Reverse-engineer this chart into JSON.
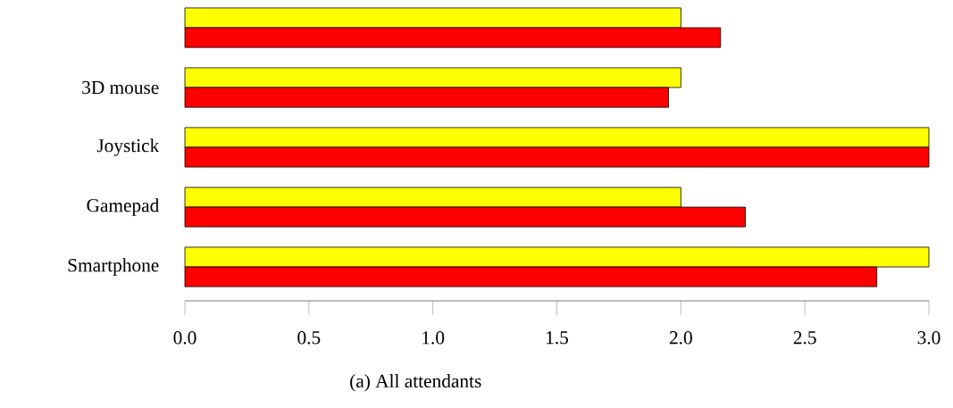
{
  "chart_data": {
    "type": "bar",
    "orientation": "horizontal",
    "categories": [
      null,
      "3D mouse",
      "Joystick",
      "Gamepad",
      "Smartphone"
    ],
    "series": [
      {
        "color": "#ffff00",
        "values": [
          2,
          2,
          3,
          2,
          3
        ]
      },
      {
        "color": "#ff0000",
        "values": [
          2.16,
          1.95,
          3,
          2.26,
          2.79
        ]
      }
    ],
    "xlim": [
      0,
      3
    ],
    "xticks": [
      {
        "value": 0,
        "label": "0.0"
      },
      {
        "value": 0.5,
        "label": "0.5"
      },
      {
        "value": 1,
        "label": "1.0"
      },
      {
        "value": 1.5,
        "label": "1.5"
      },
      {
        "value": 2,
        "label": "2.0"
      },
      {
        "value": 2.5,
        "label": "2.5"
      },
      {
        "value": 3,
        "label": "3.0"
      }
    ],
    "annotations": [
      "(a) All attendants"
    ]
  }
}
